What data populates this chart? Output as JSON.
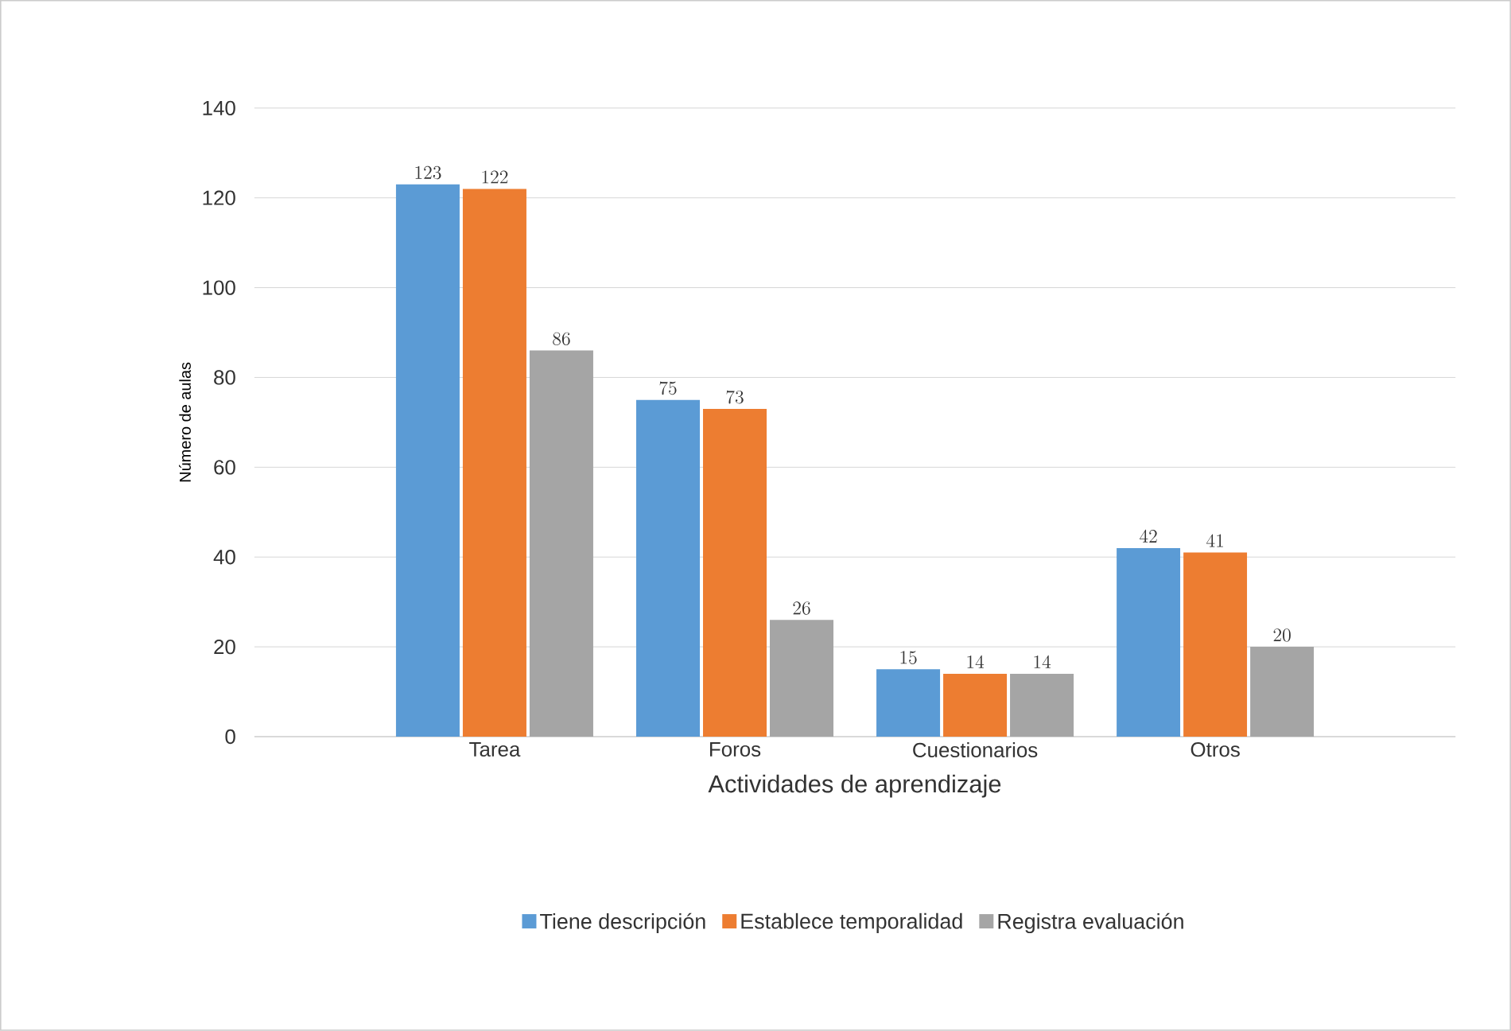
{
  "chart_data": {
    "type": "bar",
    "xlabel": "Actividades de aprendizaje",
    "ylabel": "Número de aulas",
    "categories": [
      "Tarea",
      "Foros",
      "Cuestionarios",
      "Otros"
    ],
    "series": [
      {
        "name": "Tiene descripción",
        "color": "#5b9bd5",
        "values": [
          123,
          75,
          15,
          42
        ]
      },
      {
        "name": "Establece temporalidad",
        "color": "#ed7d31",
        "values": [
          122,
          73,
          14,
          41
        ]
      },
      {
        "name": "Registra evaluación",
        "color": "#a5a5a5",
        "values": [
          86,
          26,
          14,
          20
        ]
      }
    ],
    "ylim": [
      0,
      140
    ],
    "yticks": [
      0,
      20,
      40,
      60,
      80,
      100,
      120,
      140
    ],
    "grid": "y",
    "legend": "bottom",
    "data_labels": true
  }
}
